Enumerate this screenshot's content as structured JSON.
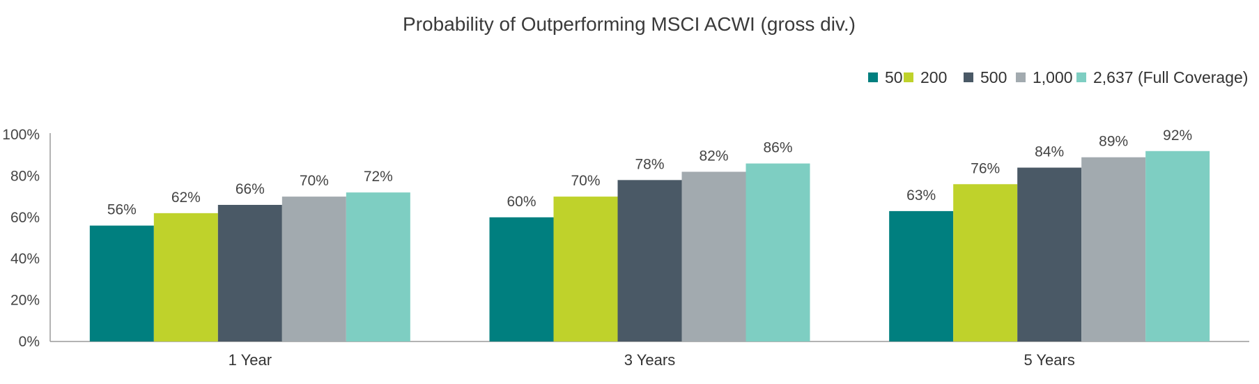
{
  "chart_data": {
    "type": "bar",
    "title": "Probability of Outperforming MSCI ACWI (gross div.)",
    "xlabel": "",
    "ylabel": "",
    "ylim": [
      0,
      100
    ],
    "yticks": [
      "0%",
      "20%",
      "40%",
      "60%",
      "80%",
      "100%"
    ],
    "categories": [
      "1 Year",
      "3 Years",
      "5 Years"
    ],
    "series": [
      {
        "name": "50",
        "color": "#007f7f",
        "values": [
          56,
          60,
          63
        ],
        "labels": [
          "56%",
          "60%",
          "63%"
        ]
      },
      {
        "name": "200",
        "color": "#bfd22b",
        "values": [
          62,
          70,
          76
        ],
        "labels": [
          "62%",
          "70%",
          "76%"
        ]
      },
      {
        "name": "500",
        "color": "#4a5966",
        "values": [
          66,
          78,
          84
        ],
        "labels": [
          "66%",
          "78%",
          "84%"
        ]
      },
      {
        "name": "1,000",
        "color": "#a2aaaf",
        "values": [
          70,
          82,
          89
        ],
        "labels": [
          "70%",
          "82%",
          "89%"
        ]
      },
      {
        "name": "2,637 (Full Coverage)",
        "color": "#7ecec2",
        "values": [
          72,
          86,
          92
        ],
        "labels": [
          "72%",
          "86%",
          "92%"
        ]
      }
    ],
    "legend_position": "top-right",
    "grid": false
  }
}
